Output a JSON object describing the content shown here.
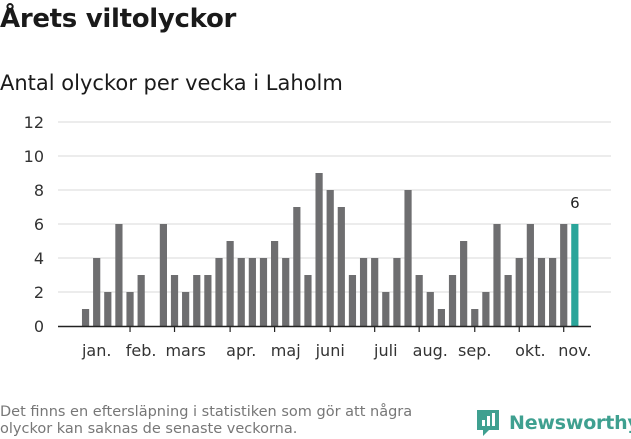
{
  "header": {
    "title": "Årets viltolyckor",
    "subtitle": "Antal olyckor per vecka i Laholm"
  },
  "footer": {
    "note": "Det finns en eftersläpning i statistiken som gör att några olyckor kan saknas de senaste veckorna.",
    "brand": "Newsworthy"
  },
  "colors": {
    "bar": "#6e6e70",
    "highlight": "#2aa59a",
    "grid": "#d8d8d8",
    "axis": "#222222",
    "brand": "#3fa090"
  },
  "chart_data": {
    "type": "bar",
    "title": "Antal olyckor per vecka i Laholm",
    "xlabel": "",
    "ylabel": "",
    "ylim": [
      0,
      12
    ],
    "yticks": [
      0,
      2,
      4,
      6,
      8,
      10,
      12
    ],
    "grid": true,
    "weeks": [
      1,
      2,
      3,
      4,
      5,
      6,
      7,
      8,
      9,
      10,
      11,
      12,
      13,
      14,
      15,
      16,
      17,
      18,
      19,
      20,
      21,
      22,
      23,
      24,
      25,
      26,
      27,
      28,
      29,
      30,
      31,
      32,
      33,
      34,
      35,
      36,
      37,
      38,
      39,
      40,
      41,
      42,
      43,
      44,
      45,
      46
    ],
    "values": [
      1,
      4,
      2,
      6,
      2,
      3,
      0,
      6,
      3,
      2,
      3,
      3,
      4,
      5,
      4,
      4,
      4,
      5,
      4,
      7,
      3,
      9,
      8,
      7,
      3,
      4,
      4,
      2,
      4,
      8,
      3,
      2,
      1,
      3,
      5,
      1,
      2,
      6,
      3,
      4,
      6,
      4,
      4,
      6,
      6,
      null
    ],
    "highlight_index": 44,
    "highlight_label": "6",
    "month_labels": [
      {
        "label": "jan.",
        "week": 2.5
      },
      {
        "label": "feb.",
        "week": 6.5
      },
      {
        "label": "mars",
        "week": 10.5
      },
      {
        "label": "apr.",
        "week": 15.5
      },
      {
        "label": "maj",
        "week": 19.5
      },
      {
        "label": "juni",
        "week": 23.5
      },
      {
        "label": "juli",
        "week": 28.5
      },
      {
        "label": "aug.",
        "week": 32.5
      },
      {
        "label": "sep.",
        "week": 36.5
      },
      {
        "label": "okt.",
        "week": 41.5
      },
      {
        "label": "nov.",
        "week": 45.5
      }
    ],
    "month_ticks": [
      5,
      9,
      14,
      18,
      23,
      27,
      31,
      36,
      40,
      44
    ]
  }
}
